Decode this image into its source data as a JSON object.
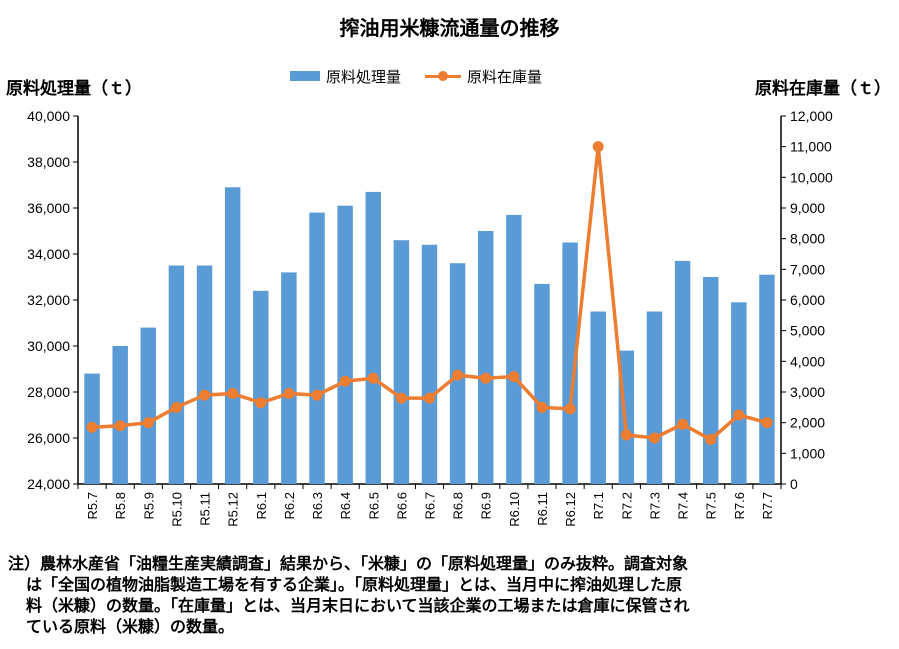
{
  "chart_data": {
    "type": "bar+line",
    "title": "搾油用米糠流通量の推移",
    "ylabel_left": "原料処理量（ｔ）",
    "ylabel_right": "原料在庫量（ｔ）",
    "categories": [
      "R5.7",
      "R5.8",
      "R5.9",
      "R5.10",
      "R5.11",
      "R5.12",
      "R6.1",
      "R6.2",
      "R6.3",
      "R6.4",
      "R6.5",
      "R6.6",
      "R6.7",
      "R6.8",
      "R6.9",
      "R6.10",
      "R6.11",
      "R6.12",
      "R7.1",
      "R7.2",
      "R7.3",
      "R7.4",
      "R7.5",
      "R7.6",
      "R7.7"
    ],
    "series": [
      {
        "name": "原料処理量",
        "type": "bar",
        "axis": "left",
        "color": "#5B9BD5",
        "values": [
          28800,
          30000,
          30800,
          33500,
          33500,
          36900,
          32400,
          33200,
          35800,
          36100,
          36700,
          34600,
          34400,
          33600,
          35000,
          35700,
          32700,
          34500,
          31500,
          29800,
          31500,
          33700,
          33000,
          31900,
          33100
        ]
      },
      {
        "name": "原料在庫量",
        "type": "line",
        "axis": "right",
        "color": "#ED7D31",
        "values": [
          1850,
          1900,
          2000,
          2500,
          2900,
          2950,
          2650,
          2950,
          2900,
          3350,
          3450,
          2800,
          2800,
          3550,
          3450,
          3500,
          2500,
          2450,
          11000,
          1600,
          1500,
          1950,
          1450,
          2250,
          2000
        ]
      }
    ],
    "ylim_left": [
      24000,
      40000
    ],
    "ylim_right": [
      0,
      12000
    ],
    "left_ticks": [
      "24,000",
      "26,000",
      "28,000",
      "30,000",
      "32,000",
      "34,000",
      "36,000",
      "38,000",
      "40,000"
    ],
    "right_ticks": [
      "0",
      "1,000",
      "2,000",
      "3,000",
      "4,000",
      "5,000",
      "6,000",
      "7,000",
      "8,000",
      "9,000",
      "10,000",
      "11,000",
      "12,000"
    ],
    "legend_position": "top",
    "grid": false
  },
  "footnote": {
    "line1": "注）農林水産省「油糧生産実績調査」結果から、「米糠」の「原料処理量」のみ抜粋。調査対象",
    "line2": "は「全国の植物油脂製造工場を有する企業」。「原料処理量」とは、当月中に搾油処理した原",
    "line3": "料（米糠）の数量。「在庫量」とは、当月末日において当該企業の工場または倉庫に保管され",
    "line4": "ている原料（米糠）の数量。"
  }
}
